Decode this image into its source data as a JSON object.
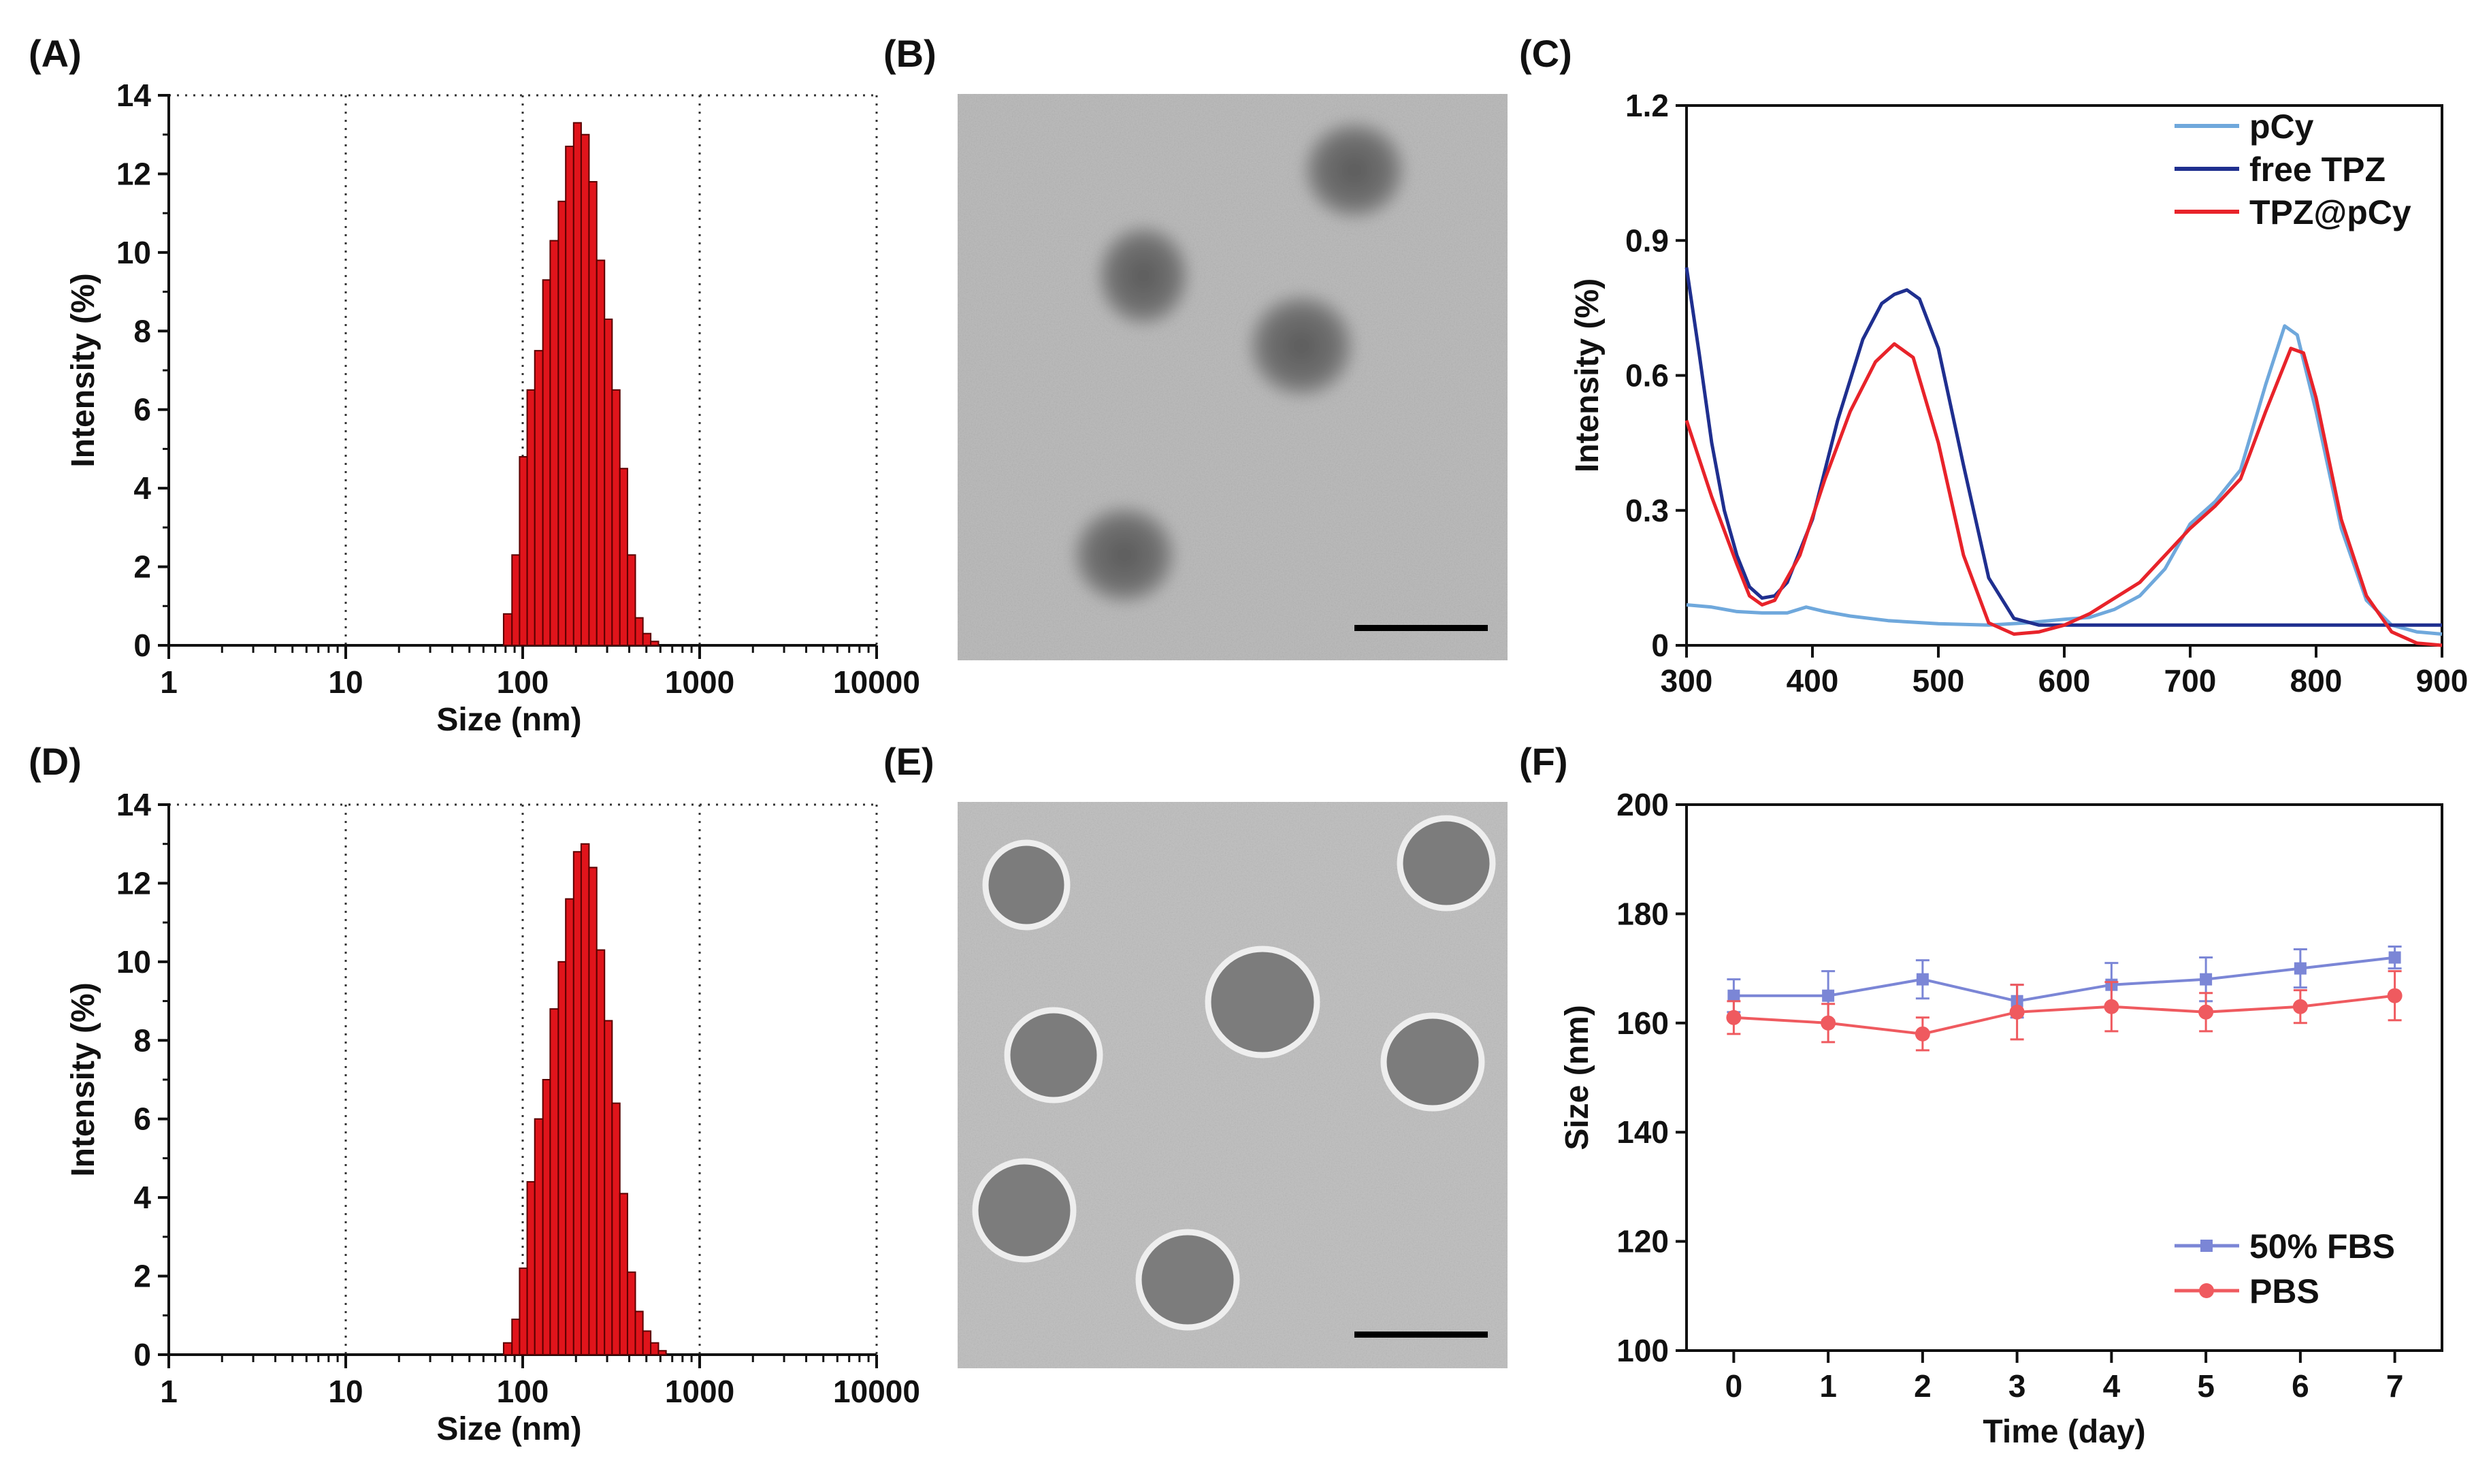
{
  "panels": {
    "A": "(A)",
    "B": "(B)",
    "C": "(C)",
    "D": "(D)",
    "E": "(E)",
    "F": "(F)"
  },
  "colors": {
    "bar_fill": "#e0141b",
    "pcy": "#6fa8dc",
    "free_tpz": "#1f2f8f",
    "tpz_pcy": "#e8232a",
    "fbs": "#7b86d6",
    "pbs": "#ef5a5f"
  },
  "chart_data": [
    {
      "id": "A",
      "type": "bar",
      "title": "",
      "xlabel": "Size (nm)",
      "ylabel": "Intensity (%)",
      "xscale": "log",
      "xlim": [
        1,
        10000
      ],
      "ylim": [
        0,
        14
      ],
      "xticks": [
        "1",
        "10",
        "100",
        "1000",
        "10000"
      ],
      "yticks": [
        "0",
        "2",
        "4",
        "6",
        "8",
        "10",
        "12",
        "14"
      ],
      "grid": true,
      "bin_edges": [
        78,
        87,
        96,
        106,
        117,
        130,
        143,
        159,
        175,
        194,
        214,
        237,
        262,
        290,
        320,
        354,
        391,
        433,
        478,
        529,
        585
      ],
      "values": [
        0.8,
        2.3,
        4.8,
        6.5,
        7.5,
        9.3,
        10.3,
        11.3,
        12.7,
        13.3,
        13.0,
        11.8,
        9.8,
        8.3,
        6.5,
        4.5,
        2.3,
        0.7,
        0.3,
        0.1
      ]
    },
    {
      "id": "C",
      "type": "line",
      "title": "",
      "xlabel": "",
      "ylabel": "Intensity (%)",
      "xlim": [
        300,
        900
      ],
      "ylim": [
        0,
        1.2
      ],
      "xticks": [
        "300",
        "400",
        "500",
        "600",
        "700",
        "800",
        "900"
      ],
      "yticks": [
        "0",
        "0.3",
        "0.6",
        "0.9",
        "1.2"
      ],
      "legend_position": "top-right",
      "series": [
        {
          "name": "pCy",
          "x": [
            300,
            320,
            340,
            360,
            380,
            395,
            410,
            430,
            460,
            500,
            540,
            570,
            600,
            620,
            640,
            660,
            680,
            700,
            720,
            740,
            760,
            775,
            785,
            800,
            820,
            840,
            860,
            880,
            900
          ],
          "y": [
            0.09,
            0.085,
            0.075,
            0.072,
            0.072,
            0.085,
            0.075,
            0.065,
            0.055,
            0.048,
            0.045,
            0.05,
            0.058,
            0.062,
            0.08,
            0.11,
            0.17,
            0.27,
            0.32,
            0.39,
            0.58,
            0.71,
            0.69,
            0.52,
            0.26,
            0.1,
            0.045,
            0.03,
            0.025
          ]
        },
        {
          "name": "free TPZ",
          "x": [
            300,
            310,
            320,
            330,
            340,
            350,
            360,
            370,
            380,
            400,
            420,
            440,
            455,
            465,
            475,
            485,
            500,
            520,
            540,
            560,
            580,
            600,
            650,
            700,
            750,
            800,
            850,
            900
          ],
          "y": [
            0.84,
            0.65,
            0.45,
            0.3,
            0.2,
            0.13,
            0.105,
            0.11,
            0.14,
            0.28,
            0.5,
            0.68,
            0.76,
            0.78,
            0.79,
            0.77,
            0.66,
            0.4,
            0.15,
            0.06,
            0.045,
            0.045,
            0.045,
            0.045,
            0.045,
            0.045,
            0.045,
            0.045
          ]
        },
        {
          "name": "TPZ@pCy",
          "x": [
            300,
            320,
            340,
            350,
            360,
            370,
            390,
            410,
            430,
            450,
            465,
            480,
            500,
            520,
            540,
            560,
            580,
            600,
            620,
            660,
            700,
            720,
            740,
            760,
            780,
            790,
            800,
            820,
            840,
            860,
            880,
            900
          ],
          "y": [
            0.5,
            0.33,
            0.18,
            0.11,
            0.09,
            0.1,
            0.2,
            0.37,
            0.52,
            0.63,
            0.67,
            0.64,
            0.45,
            0.2,
            0.05,
            0.025,
            0.03,
            0.045,
            0.07,
            0.14,
            0.26,
            0.31,
            0.37,
            0.52,
            0.66,
            0.65,
            0.55,
            0.28,
            0.11,
            0.03,
            0.005,
            0.0
          ]
        }
      ]
    },
    {
      "id": "D",
      "type": "bar",
      "title": "",
      "xlabel": "Size (nm)",
      "ylabel": "Intensity (%)",
      "xscale": "log",
      "xlim": [
        1,
        10000
      ],
      "ylim": [
        0,
        14
      ],
      "xticks": [
        "1",
        "10",
        "100",
        "1000",
        "10000"
      ],
      "yticks": [
        "0",
        "2",
        "4",
        "6",
        "8",
        "10",
        "12",
        "14"
      ],
      "grid": true,
      "bin_edges": [
        78,
        87,
        96,
        106,
        117,
        130,
        143,
        159,
        175,
        194,
        214,
        237,
        262,
        290,
        320,
        354,
        391,
        433,
        478,
        529,
        585,
        646
      ],
      "values": [
        0.3,
        0.9,
        2.2,
        4.4,
        6.0,
        7.0,
        8.8,
        10.0,
        11.6,
        12.8,
        13.0,
        12.4,
        10.3,
        8.5,
        6.4,
        4.1,
        2.1,
        1.1,
        0.6,
        0.3,
        0.1
      ]
    },
    {
      "id": "F",
      "type": "line",
      "title": "",
      "xlabel": "Time (day)",
      "ylabel": "Size (nm)",
      "xlim": [
        -0.5,
        7.5
      ],
      "ylim": [
        100,
        200
      ],
      "xticks": [
        "0",
        "1",
        "2",
        "3",
        "4",
        "5",
        "6",
        "7"
      ],
      "yticks": [
        "100",
        "120",
        "140",
        "160",
        "180",
        "200"
      ],
      "legend_position": "bottom-right",
      "series": [
        {
          "name": "50% FBS",
          "x": [
            0,
            1,
            2,
            3,
            4,
            5,
            6,
            7
          ],
          "y": [
            165,
            165,
            168,
            164,
            167,
            168,
            170,
            172
          ],
          "err": [
            3,
            4.5,
            3.5,
            3,
            4,
            4,
            3.5,
            2
          ]
        },
        {
          "name": "PBS",
          "x": [
            0,
            1,
            2,
            3,
            4,
            5,
            6,
            7
          ],
          "y": [
            161,
            160,
            158,
            162,
            163,
            162,
            163,
            165
          ],
          "err": [
            3,
            3.5,
            3,
            5,
            4.5,
            3.5,
            3,
            4.5
          ]
        }
      ]
    }
  ]
}
